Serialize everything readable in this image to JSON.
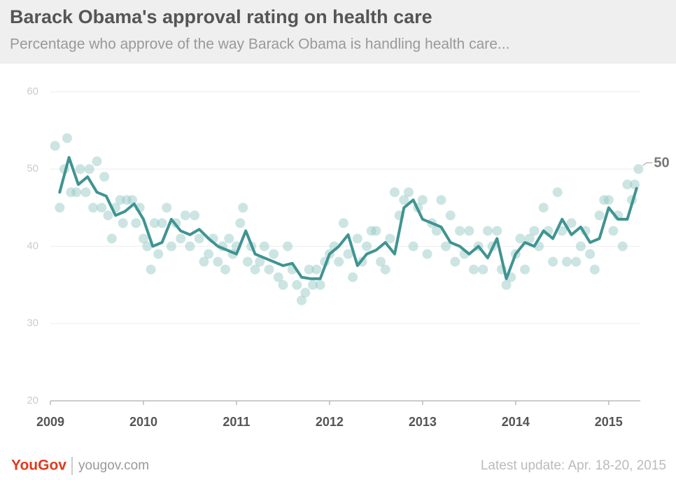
{
  "chart_data": {
    "type": "scatter",
    "title": "Barack Obama's approval rating on health care",
    "subtitle": "Percentage who approve of the way Barack Obama is handling health care...",
    "annotation": "50",
    "xlim": [
      2009,
      2015.34
    ],
    "xticks": [
      2009,
      2010,
      2011,
      2012,
      2013,
      2014,
      2015
    ],
    "ylim": [
      20,
      60
    ],
    "yticks": [
      20,
      30,
      40,
      50,
      60
    ],
    "grid": true,
    "series": [
      {
        "type": "scatter",
        "color": "#8ec5c0",
        "x": [
          2009.05,
          2009.1,
          2009.15,
          2009.18,
          2009.22,
          2009.28,
          2009.32,
          2009.38,
          2009.42,
          2009.46,
          2009.5,
          2009.55,
          2009.58,
          2009.62,
          2009.66,
          2009.7,
          2009.75,
          2009.78,
          2009.82,
          2009.88,
          2009.92,
          2009.96,
          2010.0,
          2010.04,
          2010.08,
          2010.12,
          2010.16,
          2010.2,
          2010.25,
          2010.3,
          2010.35,
          2010.4,
          2010.45,
          2010.5,
          2010.55,
          2010.6,
          2010.65,
          2010.7,
          2010.75,
          2010.8,
          2010.85,
          2010.88,
          2010.92,
          2010.96,
          2011.0,
          2011.04,
          2011.07,
          2011.12,
          2011.16,
          2011.2,
          2011.25,
          2011.3,
          2011.35,
          2011.4,
          2011.45,
          2011.5,
          2011.55,
          2011.6,
          2011.65,
          2011.7,
          2011.74,
          2011.78,
          2011.82,
          2011.86,
          2011.9,
          2011.95,
          2012.0,
          2012.05,
          2012.1,
          2012.15,
          2012.2,
          2012.25,
          2012.3,
          2012.35,
          2012.4,
          2012.45,
          2012.5,
          2012.55,
          2012.6,
          2012.65,
          2012.7,
          2012.75,
          2012.8,
          2012.85,
          2012.9,
          2012.95,
          2013.0,
          2013.05,
          2013.1,
          2013.15,
          2013.2,
          2013.25,
          2013.3,
          2013.35,
          2013.4,
          2013.45,
          2013.5,
          2013.55,
          2013.6,
          2013.65,
          2013.7,
          2013.75,
          2013.8,
          2013.85,
          2013.9,
          2013.95,
          2014.0,
          2014.05,
          2014.1,
          2014.15,
          2014.2,
          2014.25,
          2014.3,
          2014.35,
          2014.4,
          2014.45,
          2014.5,
          2014.55,
          2014.6,
          2014.65,
          2014.7,
          2014.75,
          2014.8,
          2014.85,
          2014.9,
          2014.95,
          2015.0,
          2015.05,
          2015.1,
          2015.15,
          2015.2,
          2015.25,
          2015.28,
          2015.32
        ],
        "values": [
          53,
          45,
          50,
          54,
          47,
          47,
          50,
          47,
          50,
          45,
          51,
          45,
          49,
          44,
          41,
          45,
          46,
          43,
          46,
          46,
          43,
          45,
          41,
          40,
          37,
          43,
          39,
          43,
          45,
          40,
          43,
          41,
          44,
          40,
          44,
          41,
          38,
          39,
          41,
          38,
          40,
          37,
          41,
          39,
          40,
          43,
          45,
          38,
          40,
          37,
          38,
          40,
          37,
          39,
          36,
          35,
          40,
          37,
          35,
          33,
          34,
          37,
          35,
          37,
          35,
          38,
          39,
          40,
          38,
          43,
          39,
          36,
          41,
          38,
          40,
          42,
          42,
          38,
          37,
          41,
          47,
          44,
          46,
          47,
          40,
          45,
          46,
          39,
          43,
          42,
          46,
          40,
          44,
          38,
          42,
          39,
          42,
          37,
          40,
          37,
          42,
          40,
          42,
          37,
          35,
          36,
          39,
          41,
          37,
          41,
          42,
          40,
          45,
          42,
          38,
          47,
          42,
          38,
          43,
          38,
          40,
          42,
          39,
          37,
          44,
          46,
          46,
          42,
          44,
          40,
          48,
          46,
          48,
          50
        ]
      },
      {
        "type": "line",
        "color": "#3f9491",
        "x": [
          2009.1,
          2009.2,
          2009.3,
          2009.4,
          2009.5,
          2009.6,
          2009.7,
          2009.8,
          2009.9,
          2010.0,
          2010.1,
          2010.2,
          2010.3,
          2010.4,
          2010.5,
          2010.6,
          2010.7,
          2010.8,
          2010.9,
          2011.0,
          2011.1,
          2011.2,
          2011.3,
          2011.4,
          2011.5,
          2011.6,
          2011.7,
          2011.8,
          2011.9,
          2012.0,
          2012.1,
          2012.2,
          2012.3,
          2012.4,
          2012.5,
          2012.6,
          2012.7,
          2012.8,
          2012.9,
          2013.0,
          2013.1,
          2013.2,
          2013.3,
          2013.4,
          2013.5,
          2013.6,
          2013.7,
          2013.8,
          2013.9,
          2014.0,
          2014.1,
          2014.2,
          2014.3,
          2014.4,
          2014.5,
          2014.6,
          2014.7,
          2014.8,
          2014.9,
          2015.0,
          2015.1,
          2015.2,
          2015.3
        ],
        "values": [
          47,
          51.5,
          48,
          49,
          47,
          46.5,
          44,
          44.5,
          45.5,
          43.5,
          40,
          40.5,
          43.5,
          42,
          41.5,
          42.2,
          41,
          40,
          39.5,
          39,
          42,
          39,
          38.5,
          38,
          37.5,
          37.8,
          36,
          35.8,
          35.8,
          39,
          40,
          41.5,
          37.5,
          39,
          39.5,
          40.5,
          39,
          45,
          46,
          43.5,
          43,
          42.5,
          40.5,
          40,
          39,
          40,
          38.5,
          41,
          35.8,
          39,
          40.5,
          40,
          42,
          41,
          43.5,
          41.5,
          42.5,
          40.5,
          41,
          45,
          43.5,
          43.5,
          47.5
        ]
      }
    ]
  },
  "footer": {
    "brand": "YouGov",
    "site": "yougov.com",
    "update": "Latest update: Apr. 18-20, 2015"
  }
}
